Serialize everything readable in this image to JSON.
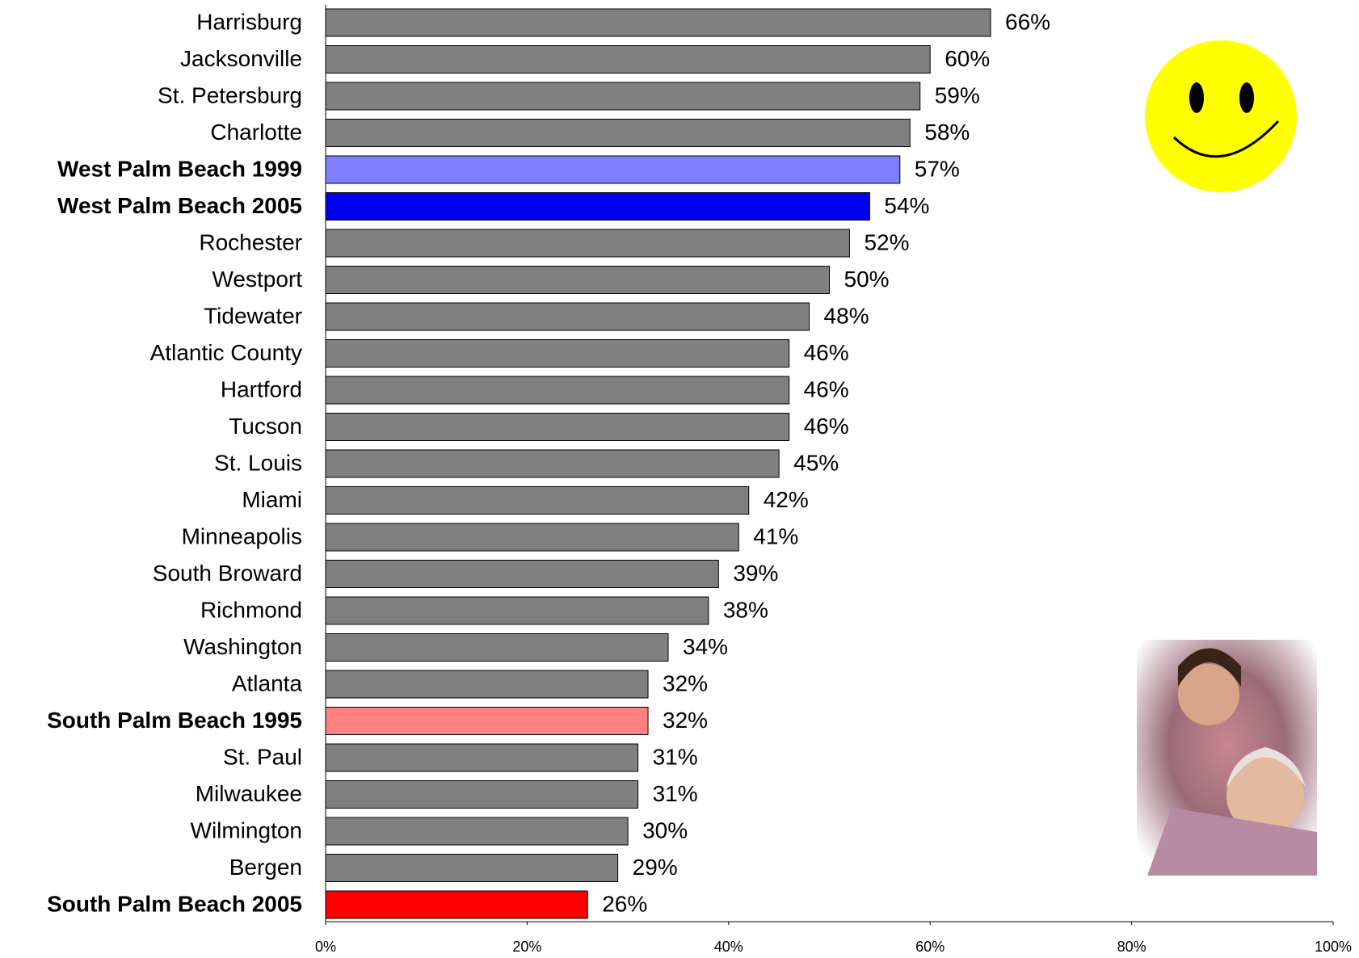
{
  "chart_data": {
    "type": "hbar",
    "categories": [
      "Harrisburg",
      "Jacksonville",
      "St. Petersburg",
      "Charlotte",
      "West Palm Beach 1999",
      "West Palm Beach 2005",
      "Rochester",
      "Westport",
      "Tidewater",
      "Atlantic County",
      "Hartford",
      "Tucson",
      "St. Louis",
      "Miami",
      "Minneapolis",
      "South Broward",
      "Richmond",
      "Washington",
      "Atlanta",
      "South Palm Beach 1995",
      "St. Paul",
      "Milwaukee",
      "Wilmington",
      "Bergen",
      "South Palm Beach 2005"
    ],
    "values": [
      66,
      60,
      59,
      58,
      57,
      54,
      52,
      50,
      48,
      46,
      46,
      46,
      45,
      42,
      41,
      39,
      38,
      34,
      32,
      32,
      31,
      31,
      30,
      29,
      26
    ],
    "value_labels": [
      "66%",
      "60%",
      "59%",
      "58%",
      "57%",
      "54%",
      "52%",
      "50%",
      "48%",
      "46%",
      "46%",
      "46%",
      "45%",
      "42%",
      "41%",
      "39%",
      "38%",
      "34%",
      "32%",
      "32%",
      "31%",
      "31%",
      "30%",
      "29%",
      "26%"
    ],
    "colors": [
      "#808080",
      "#808080",
      "#808080",
      "#808080",
      "#8080ff",
      "#0000ee",
      "#808080",
      "#808080",
      "#808080",
      "#808080",
      "#808080",
      "#808080",
      "#808080",
      "#808080",
      "#808080",
      "#808080",
      "#808080",
      "#808080",
      "#808080",
      "#ff8080",
      "#808080",
      "#808080",
      "#808080",
      "#808080",
      "#ff0000"
    ],
    "label_colors": [
      "#000000",
      "#000000",
      "#000000",
      "#000000",
      "#8080ff",
      "#0000ee",
      "#000000",
      "#000000",
      "#000000",
      "#000000",
      "#000000",
      "#000000",
      "#000000",
      "#ff0000",
      "#000000",
      "#000000",
      "#000000",
      "#000000",
      "#000000",
      "#ff8080",
      "#000000",
      "#000000",
      "#000000",
      "#000000",
      "#ff0000"
    ],
    "label_bold": [
      false,
      false,
      false,
      false,
      true,
      true,
      false,
      false,
      false,
      false,
      false,
      false,
      false,
      false,
      false,
      false,
      false,
      false,
      false,
      true,
      false,
      false,
      false,
      false,
      true
    ],
    "xlim": [
      0,
      100
    ],
    "xticks": [
      {
        "value": 0,
        "label": "0%"
      },
      {
        "value": 20,
        "label": "20%"
      },
      {
        "value": 40,
        "label": "40%"
      },
      {
        "value": 60,
        "label": "60%"
      },
      {
        "value": 80,
        "label": "80%"
      },
      {
        "value": 100,
        "label": "100%"
      }
    ]
  }
}
